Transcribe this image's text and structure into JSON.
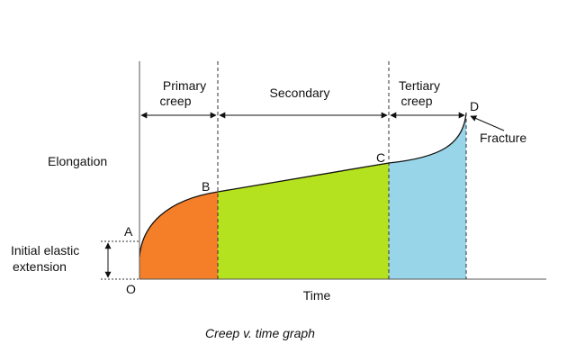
{
  "diagram": {
    "caption": "Creep v. time graph",
    "y_axis_label": "Elongation",
    "x_axis_label": "Time",
    "origin_label": "O",
    "elastic_label": [
      "Initial elastic",
      "extension"
    ],
    "stages": [
      {
        "label": [
          "Primary",
          "creep"
        ]
      },
      {
        "label": [
          "Secondary"
        ]
      },
      {
        "label": [
          "Tertiary",
          "creep"
        ]
      }
    ],
    "points": [
      "A",
      "B",
      "C",
      "D"
    ],
    "fracture_label": "Fracture"
  }
}
